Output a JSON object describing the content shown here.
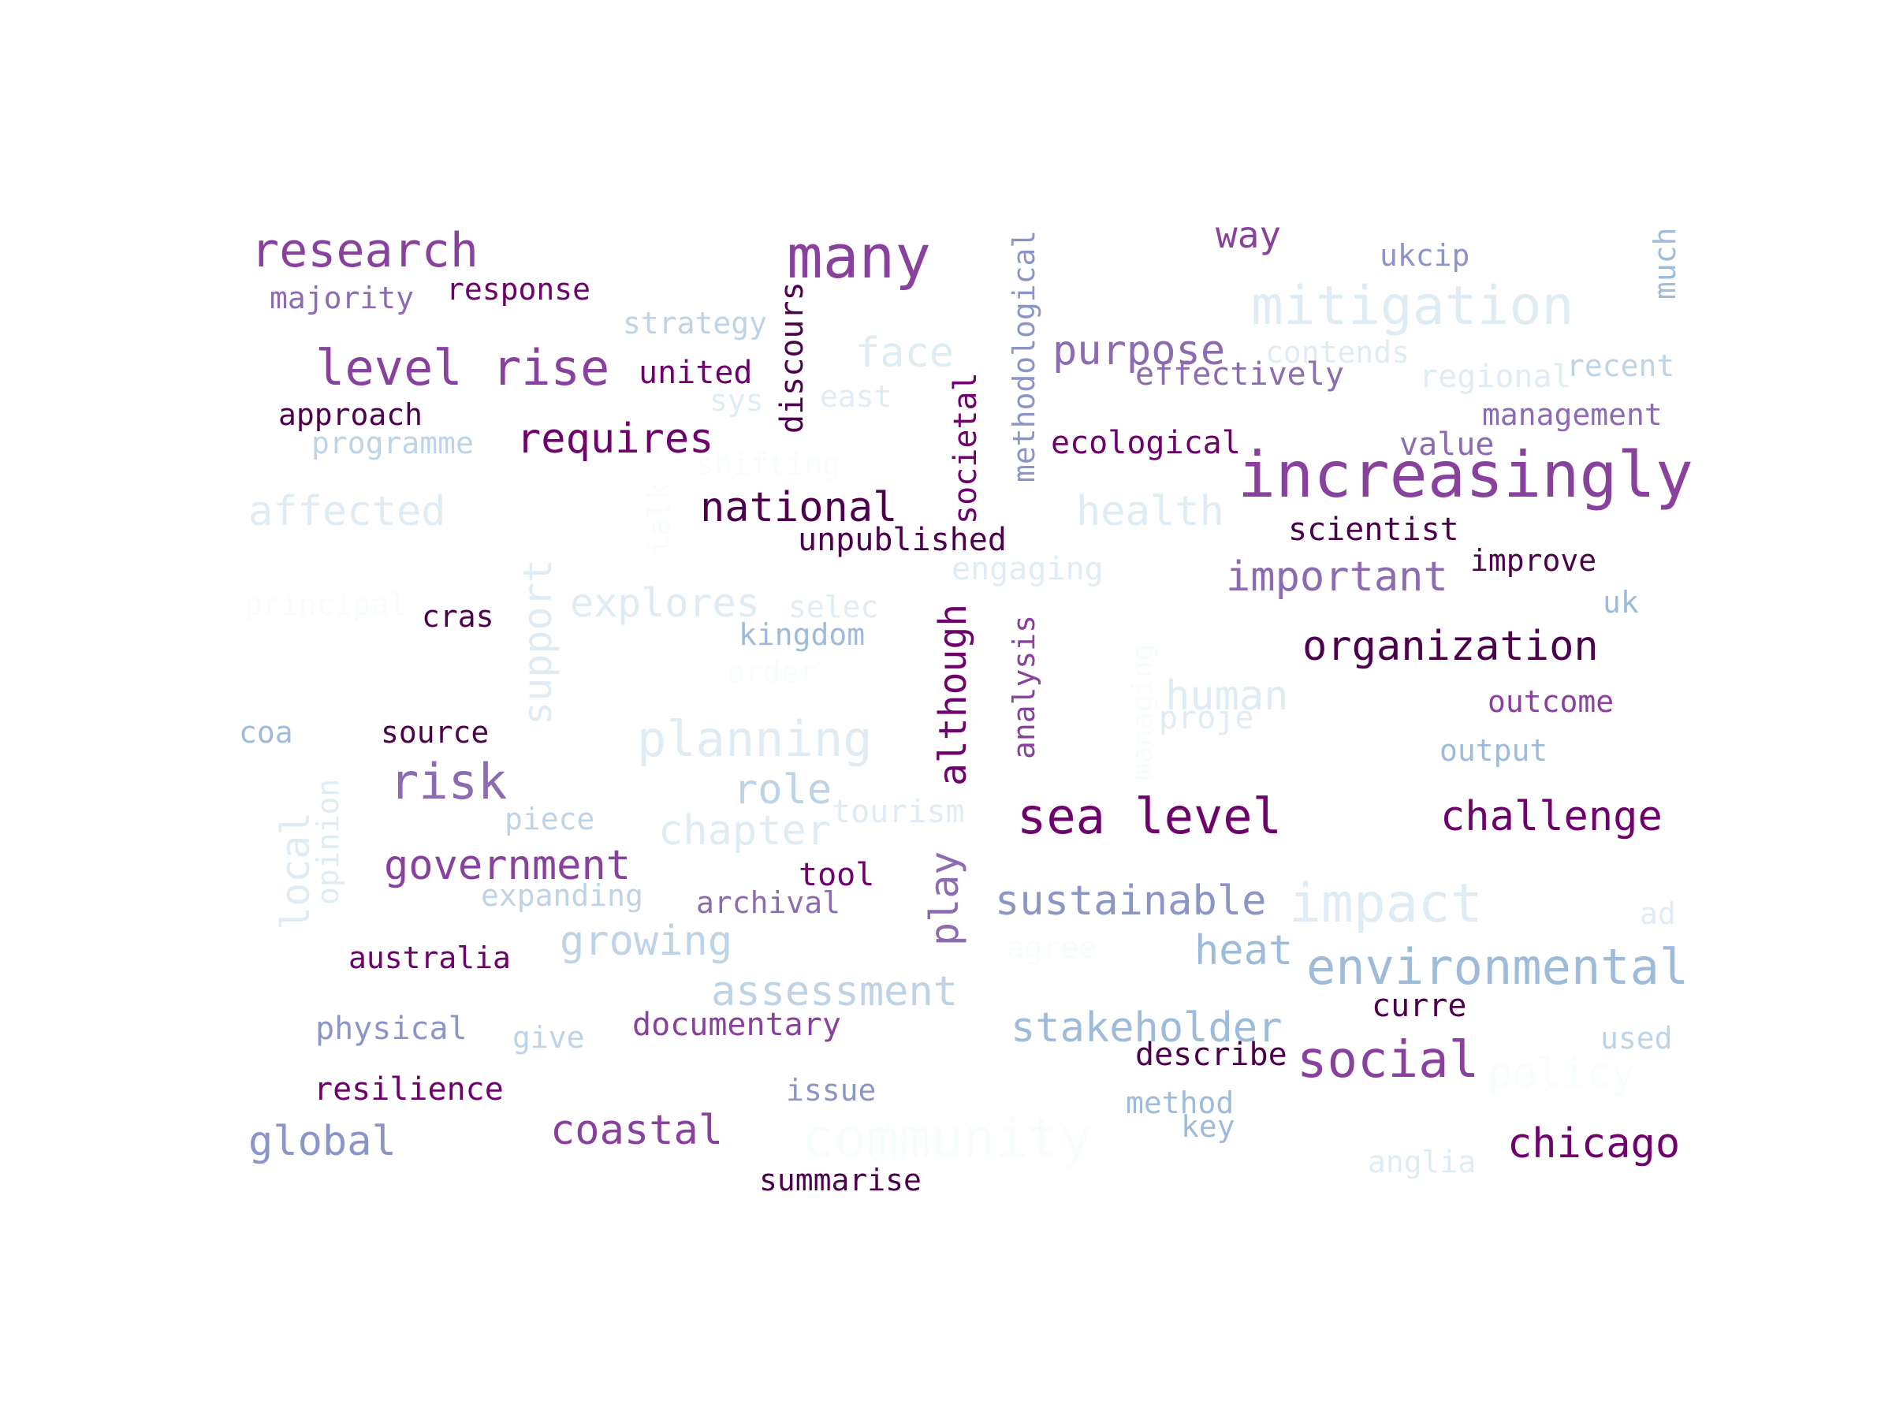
{
  "colors": {
    "darkest": "#4d004b",
    "dark": "#6e016b",
    "purple": "#88419d",
    "mauve": "#8c6bb1",
    "lavender": "#8c96c6",
    "steel": "#9ebcda",
    "pale": "#bfd3e6",
    "faint": "#e0ecf4",
    "ghost": "#f7fcfd"
  },
  "words": [
    {
      "text": "research",
      "color": "#88419d"
    },
    {
      "text": "majority",
      "color": "#8c6bb1"
    },
    {
      "text": "response",
      "color": "#6e016b"
    },
    {
      "text": "many",
      "color": "#88419d"
    },
    {
      "text": "way",
      "color": "#88419d"
    },
    {
      "text": "ukcip",
      "color": "#8c96c6"
    },
    {
      "text": "much",
      "color": "#9ebcda"
    },
    {
      "text": "methodological",
      "color": "#8c96c6"
    },
    {
      "text": "mitigation",
      "color": "#e0ecf4"
    },
    {
      "text": "strategy",
      "color": "#bfd3e6"
    },
    {
      "text": "discours",
      "color": "#4d004b"
    },
    {
      "text": "level rise",
      "color": "#88419d"
    },
    {
      "text": "united",
      "color": "#6e016b"
    },
    {
      "text": "face",
      "color": "#e0ecf4"
    },
    {
      "text": "purpose",
      "color": "#8c6bb1"
    },
    {
      "text": "contends",
      "color": "#e0ecf4"
    },
    {
      "text": "recent",
      "color": "#bfd3e6"
    },
    {
      "text": "effectively",
      "color": "#8c6bb1"
    },
    {
      "text": "regional",
      "color": "#e0ecf4"
    },
    {
      "text": "approach",
      "color": "#4d004b"
    },
    {
      "text": "sys",
      "color": "#e0ecf4"
    },
    {
      "text": "east",
      "color": "#e0ecf4"
    },
    {
      "text": "management",
      "color": "#8c6bb1"
    },
    {
      "text": "societal",
      "color": "#6e016b"
    },
    {
      "text": "programme",
      "color": "#bfd3e6"
    },
    {
      "text": "requires",
      "color": "#6e016b"
    },
    {
      "text": "ecological",
      "color": "#6e016b"
    },
    {
      "text": "value",
      "color": "#8c6bb1"
    },
    {
      "text": "shifting",
      "color": "#f7fcfd"
    },
    {
      "text": "increasingly",
      "color": "#88419d"
    },
    {
      "text": "affected",
      "color": "#e0ecf4"
    },
    {
      "text": "talk",
      "color": "#f7fcfd"
    },
    {
      "text": "national",
      "color": "#4d004b"
    },
    {
      "text": "health",
      "color": "#e0ecf4"
    },
    {
      "text": "scientist",
      "color": "#4d004b"
    },
    {
      "text": "unpublished",
      "color": "#4d004b"
    },
    {
      "text": "engaging",
      "color": "#e0ecf4"
    },
    {
      "text": "important",
      "color": "#8c6bb1"
    },
    {
      "text": "improve",
      "color": "#4d004b"
    },
    {
      "text": "support",
      "color": "#e0ecf4"
    },
    {
      "text": "principal",
      "color": "#f7fcfd"
    },
    {
      "text": "explores",
      "color": "#e0ecf4"
    },
    {
      "text": "selec",
      "color": "#e0ecf4"
    },
    {
      "text": "uk",
      "color": "#9ebcda"
    },
    {
      "text": "cras",
      "color": "#4d004b"
    },
    {
      "text": "kingdom",
      "color": "#9ebcda"
    },
    {
      "text": "although",
      "color": "#6e016b"
    },
    {
      "text": "analysis",
      "color": "#88419d"
    },
    {
      "text": "organization",
      "color": "#4d004b"
    },
    {
      "text": "order",
      "color": "#f7fcfd"
    },
    {
      "text": "managing",
      "color": "#f7fcfd"
    },
    {
      "text": "human",
      "color": "#e0ecf4"
    },
    {
      "text": "outcome",
      "color": "#88419d"
    },
    {
      "text": "coa",
      "color": "#9ebcda"
    },
    {
      "text": "source",
      "color": "#4d004b"
    },
    {
      "text": "planning",
      "color": "#e0ecf4"
    },
    {
      "text": "proje",
      "color": "#e0ecf4"
    },
    {
      "text": "output",
      "color": "#9ebcda"
    },
    {
      "text": "risk",
      "color": "#8c6bb1"
    },
    {
      "text": "opinion",
      "color": "#e0ecf4"
    },
    {
      "text": "role",
      "color": "#bfd3e6"
    },
    {
      "text": "piece",
      "color": "#bfd3e6"
    },
    {
      "text": "tourism",
      "color": "#e0ecf4"
    },
    {
      "text": "sea level",
      "color": "#6e016b"
    },
    {
      "text": "challenge",
      "color": "#6e016b"
    },
    {
      "text": "local",
      "color": "#e0ecf4"
    },
    {
      "text": "chapter",
      "color": "#e0ecf4"
    },
    {
      "text": "play",
      "color": "#8c6bb1"
    },
    {
      "text": "government",
      "color": "#88419d"
    },
    {
      "text": "tool",
      "color": "#6e016b"
    },
    {
      "text": "expanding",
      "color": "#bfd3e6"
    },
    {
      "text": "archival",
      "color": "#8c6bb1"
    },
    {
      "text": "sustainable",
      "color": "#8c96c6"
    },
    {
      "text": "impact",
      "color": "#e0ecf4"
    },
    {
      "text": "ad",
      "color": "#e0ecf4"
    },
    {
      "text": "growing",
      "color": "#bfd3e6"
    },
    {
      "text": "agree",
      "color": "#f7fcfd"
    },
    {
      "text": "heat",
      "color": "#9ebcda"
    },
    {
      "text": "environmental",
      "color": "#9ebcda"
    },
    {
      "text": "australia",
      "color": "#6e016b"
    },
    {
      "text": "assessment",
      "color": "#bfd3e6"
    },
    {
      "text": "curre",
      "color": "#4d004b"
    },
    {
      "text": "stakeholder",
      "color": "#9ebcda"
    },
    {
      "text": "physical",
      "color": "#8c96c6"
    },
    {
      "text": "give",
      "color": "#bfd3e6"
    },
    {
      "text": "documentary",
      "color": "#88419d"
    },
    {
      "text": "describe",
      "color": "#4d004b"
    },
    {
      "text": "social",
      "color": "#88419d"
    },
    {
      "text": "used",
      "color": "#bfd3e6"
    },
    {
      "text": "policy",
      "color": "#f7fcfd"
    },
    {
      "text": "resilience",
      "color": "#6e016b"
    },
    {
      "text": "issue",
      "color": "#8c96c6"
    },
    {
      "text": "method",
      "color": "#9ebcda"
    },
    {
      "text": "key",
      "color": "#9ebcda"
    },
    {
      "text": "global",
      "color": "#8c96c6"
    },
    {
      "text": "coastal",
      "color": "#88419d"
    },
    {
      "text": "community",
      "color": "#f7fcfd"
    },
    {
      "text": "chicago",
      "color": "#6e016b"
    },
    {
      "text": "anglia",
      "color": "#e0ecf4"
    },
    {
      "text": "summarise",
      "color": "#4d004b"
    }
  ]
}
